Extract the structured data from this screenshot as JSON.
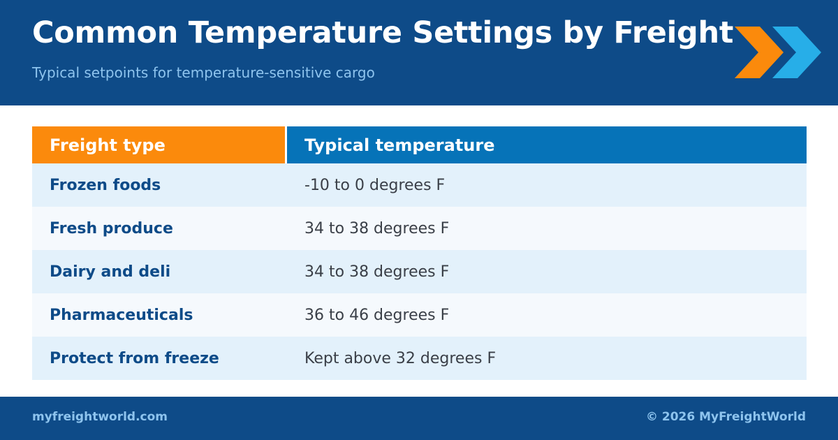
{
  "header": {
    "title": "Common Temperature Settings by Freight",
    "subtitle": "Typical setpoints for temperature-sensitive cargo",
    "logo_icon": "double-chevron-right-icon"
  },
  "table": {
    "headers": [
      "Freight type",
      "Typical temperature"
    ],
    "rows": [
      {
        "type": "Frozen foods",
        "temperature": "-10 to 0 degrees F"
      },
      {
        "type": "Fresh produce",
        "temperature": "34 to 38 degrees F"
      },
      {
        "type": "Dairy and deli",
        "temperature": "34 to 38 degrees F"
      },
      {
        "type": "Pharmaceuticals",
        "temperature": "36 to 46 degrees F"
      },
      {
        "type": "Protect from freeze",
        "temperature": "Kept above 32 degrees F"
      }
    ]
  },
  "footer": {
    "website": "myfreightworld.com",
    "copyright": "© 2026 MyFreightWorld"
  },
  "colors": {
    "navy": "#0e4b88",
    "orange": "#fb8a0c",
    "blue": "#0673b8",
    "light_blue": "#8ec4ee",
    "cyan": "#27aee8"
  }
}
